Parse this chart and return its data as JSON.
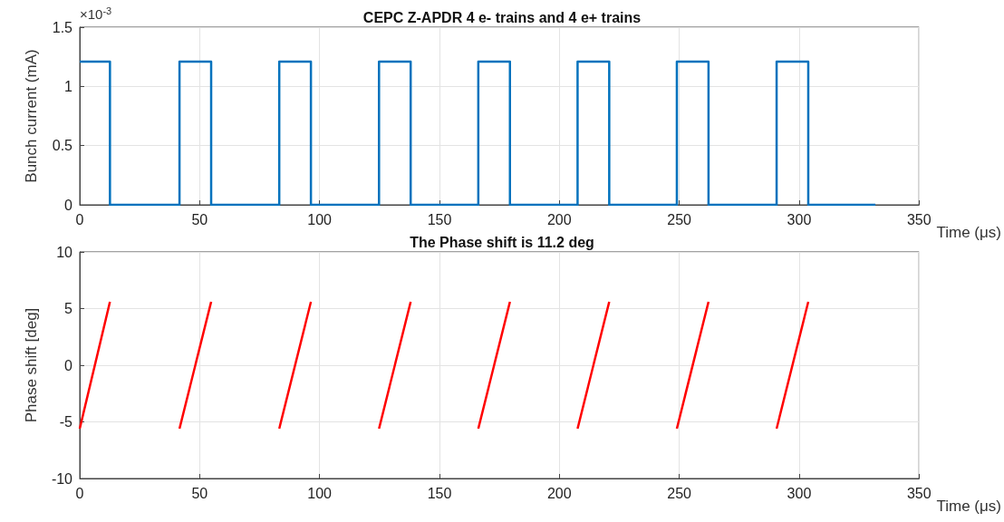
{
  "chart_data": [
    {
      "type": "step",
      "title": "CEPC Z-APDR 4 e- trains and 4 e+ trains",
      "xlabel": "Time (μs)",
      "ylabel": "Bunch current (mA)",
      "annotations": [
        "×10$^{-3}$"
      ],
      "series": [
        {
          "color": "#0072bd",
          "x": [
            0,
            12.6,
            41.6,
            54.8,
            83.2,
            96.4,
            124.8,
            138,
            166.2,
            179.4,
            207.6,
            220.8,
            249,
            262.2,
            290.6,
            303.8,
            331.8
          ],
          "values": [
            1.21,
            0,
            1.21,
            0,
            1.21,
            0,
            1.21,
            0,
            1.21,
            0,
            1.21,
            0,
            1.21,
            0,
            1.21,
            0,
            0
          ]
        }
      ],
      "xlim": [
        0,
        350
      ],
      "xticks": [
        0,
        50,
        100,
        150,
        200,
        250,
        300,
        350
      ],
      "ylim": [
        0,
        1.5
      ],
      "yticks": [
        0,
        0.5,
        1,
        1.5
      ],
      "grid": true
    },
    {
      "type": "line",
      "title": "The Phase shift is 11.2 deg",
      "xlabel": "Time (μs)",
      "ylabel": "Phase shift [deg]",
      "series": [
        {
          "color": "#ff0000",
          "x": [
            0,
            12.6
          ],
          "values": [
            -5.6,
            5.6
          ]
        },
        {
          "color": "#ff0000",
          "x": [
            41.6,
            54.8
          ],
          "values": [
            -5.6,
            5.6
          ]
        },
        {
          "color": "#ff0000",
          "x": [
            83.2,
            96.4
          ],
          "values": [
            -5.6,
            5.6
          ]
        },
        {
          "color": "#ff0000",
          "x": [
            124.8,
            138
          ],
          "values": [
            -5.6,
            5.6
          ]
        },
        {
          "color": "#ff0000",
          "x": [
            166.2,
            179.4
          ],
          "values": [
            -5.6,
            5.6
          ]
        },
        {
          "color": "#ff0000",
          "x": [
            207.6,
            220.8
          ],
          "values": [
            -5.6,
            5.6
          ]
        },
        {
          "color": "#ff0000",
          "x": [
            249,
            262.2
          ],
          "values": [
            -5.6,
            5.6
          ]
        },
        {
          "color": "#ff0000",
          "x": [
            290.6,
            303.8
          ],
          "values": [
            -5.6,
            5.6
          ]
        }
      ],
      "xlim": [
        0,
        350
      ],
      "xticks": [
        0,
        50,
        100,
        150,
        200,
        250,
        300,
        350
      ],
      "ylim": [
        -10,
        10
      ],
      "yticks": [
        -10,
        -5,
        0,
        5,
        10
      ],
      "grid": true
    }
  ]
}
